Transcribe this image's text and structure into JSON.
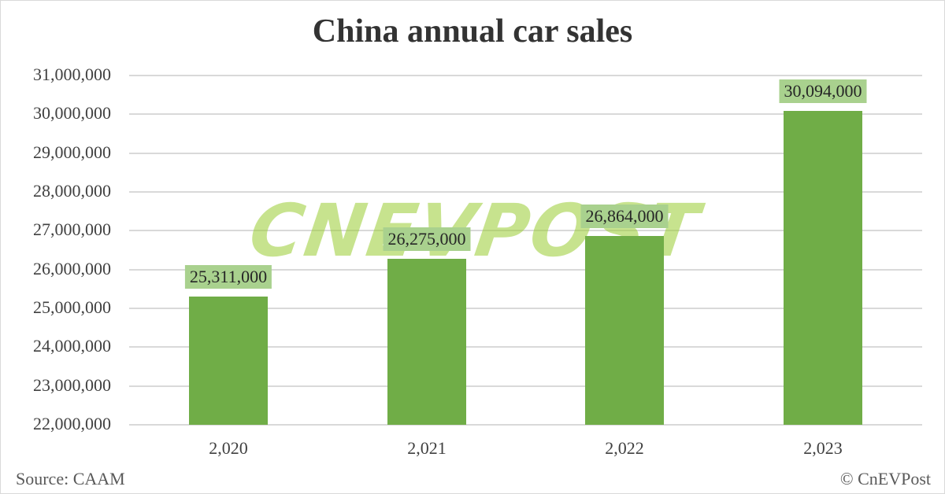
{
  "chart_data": {
    "type": "bar",
    "title": "China annual car sales",
    "categories": [
      "2,020",
      "2,021",
      "2,022",
      "2,023"
    ],
    "values": [
      25311000,
      26275000,
      26864000,
      30094000
    ],
    "data_labels": [
      "25,311,000",
      "26,275,000",
      "26,864,000",
      "30,094,000"
    ],
    "xlabel": "",
    "ylabel": "",
    "ylim": [
      22000000,
      31000000
    ],
    "yticks": [
      "31,000,000",
      "30,000,000",
      "29,000,000",
      "28,000,000",
      "27,000,000",
      "26,000,000",
      "25,000,000",
      "24,000,000",
      "23,000,000",
      "22,000,000"
    ],
    "grid": true,
    "legend": "none",
    "bar_color": "#70AD47",
    "label_bg_color": "#A9D18E"
  },
  "footer": {
    "source": "Source: CAAM",
    "copyright": "© CnEVPost"
  },
  "watermark": "CNEVPOST"
}
